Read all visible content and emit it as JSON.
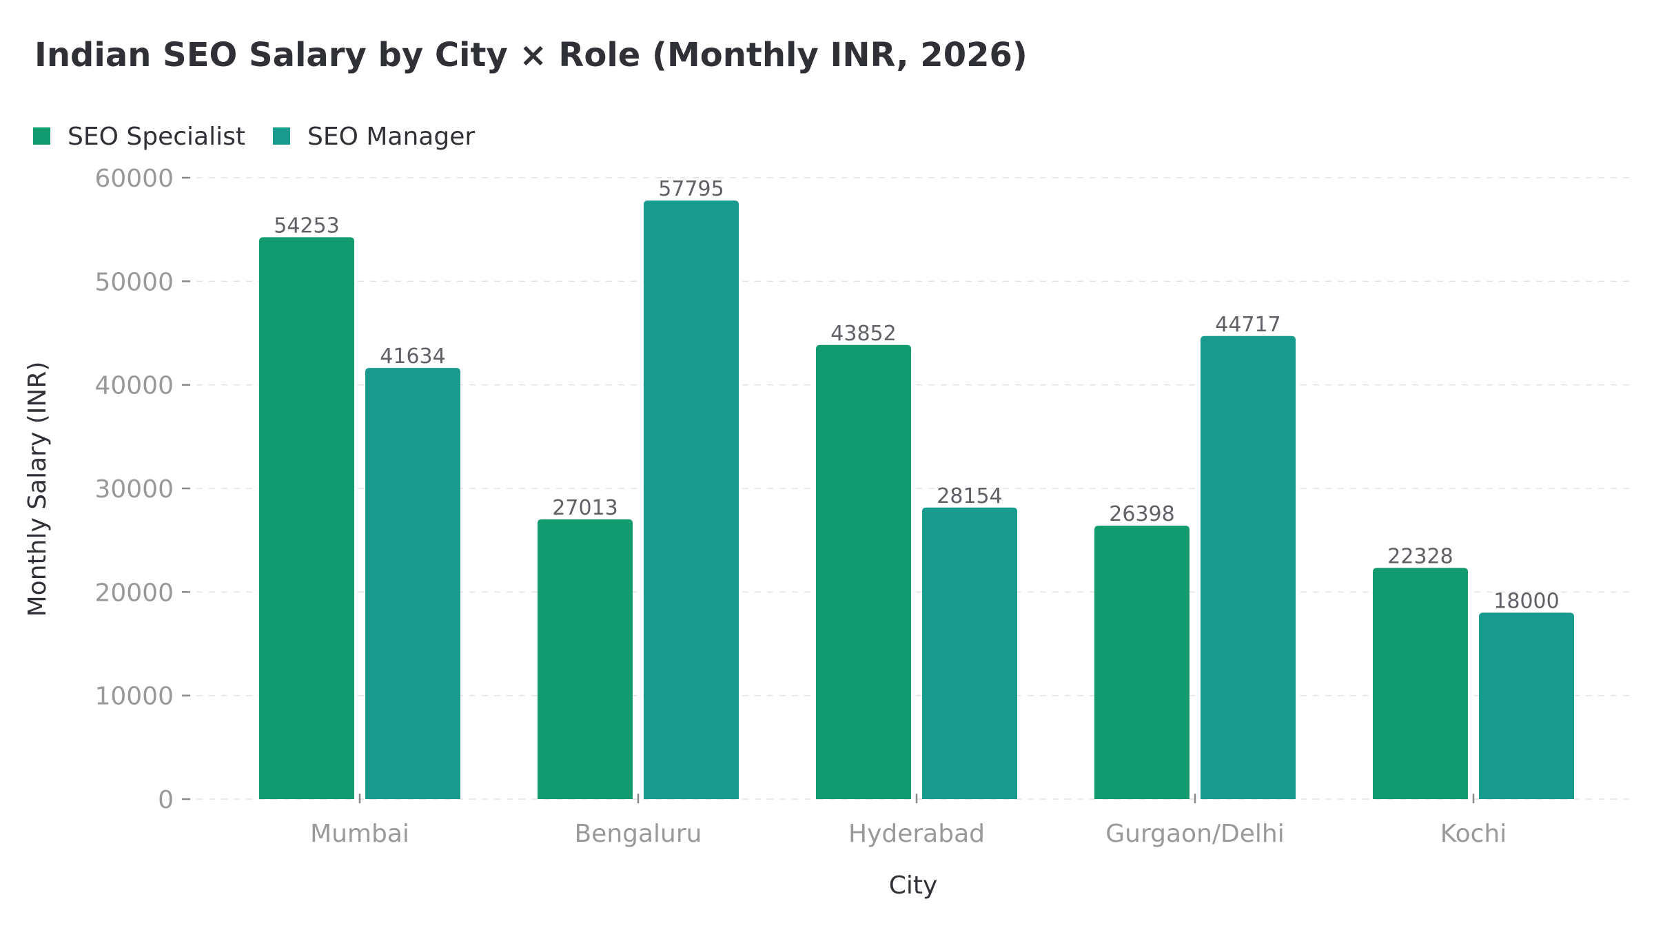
{
  "chart_data": {
    "type": "bar",
    "title": "Indian SEO Salary by City × Role (Monthly INR, 2026)",
    "xlabel": "City",
    "ylabel": "Monthly Salary (INR)",
    "categories": [
      "Mumbai",
      "Bengaluru",
      "Hyderabad",
      "Gurgaon/Delhi",
      "Kochi"
    ],
    "series": [
      {
        "name": "SEO Specialist",
        "color": "#119b6f",
        "values": [
          54253,
          27013,
          43852,
          26398,
          22328
        ]
      },
      {
        "name": "SEO Manager",
        "color": "#189a8f",
        "values": [
          41634,
          57795,
          28154,
          44717,
          18000
        ]
      }
    ],
    "ylim": [
      0,
      60000
    ],
    "yticks": [
      0,
      10000,
      20000,
      30000,
      40000,
      50000,
      60000
    ],
    "grid": true,
    "legend_position": "top-left",
    "data_labels": true
  }
}
